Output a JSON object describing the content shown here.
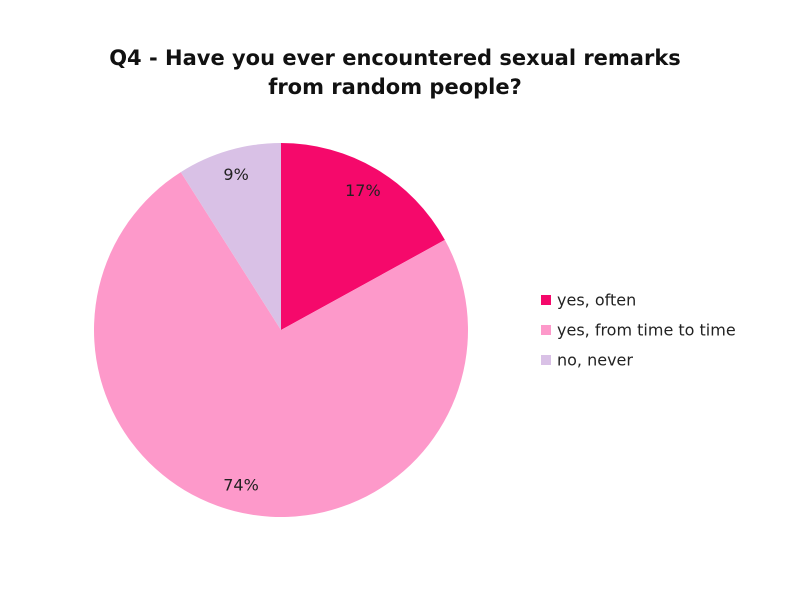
{
  "chart_data": {
    "type": "pie",
    "title": "Q4 - Have you ever encountered sexual remarks from random people?",
    "categories": [
      "yes, often",
      "yes, from time to time",
      "no, never"
    ],
    "values": [
      17,
      74,
      9
    ],
    "value_labels": [
      "17%",
      "74%",
      "9%"
    ],
    "colors": [
      "#f5096b",
      "#fd99ca",
      "#d9c1e6"
    ],
    "legend": "right"
  }
}
